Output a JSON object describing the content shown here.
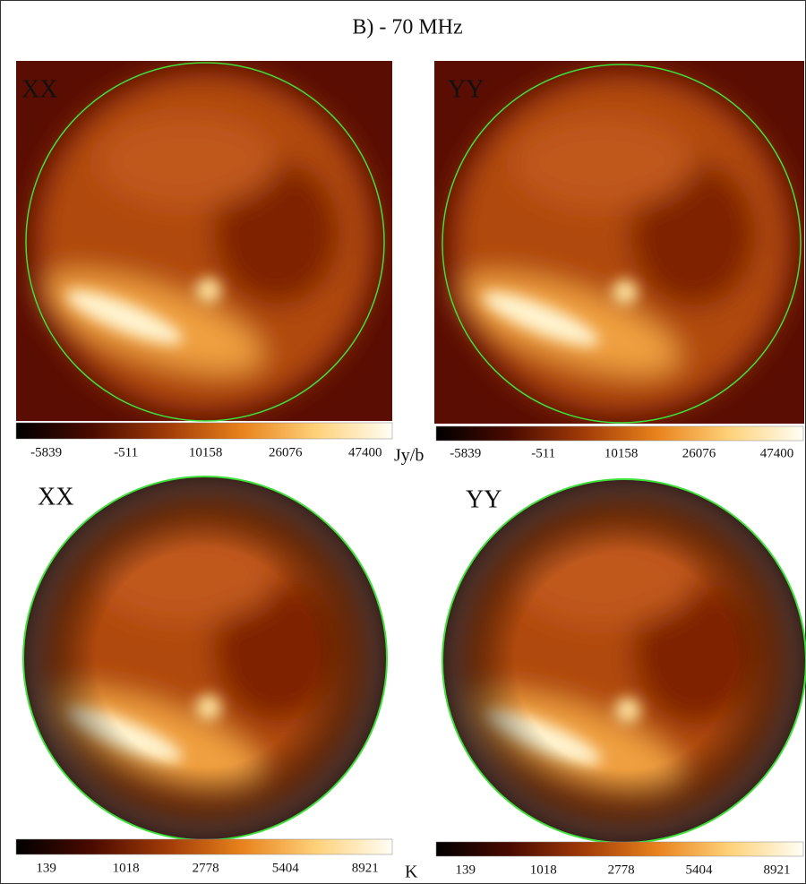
{
  "title": "B) - 70 MHz",
  "panels": [
    {
      "label": "XX"
    },
    {
      "label": "YY"
    },
    {
      "label": "XX"
    },
    {
      "label": "YY"
    }
  ],
  "colorbars": [
    {
      "ticks": [
        "-5839",
        "-511",
        "10158",
        "26076",
        "47400"
      ]
    },
    {
      "ticks": [
        "-5839",
        "-511",
        "10158",
        "26076",
        "47400"
      ]
    },
    {
      "ticks": [
        "139",
        "1018",
        "2778",
        "5404",
        "8921"
      ]
    },
    {
      "ticks": [
        "139",
        "1018",
        "2778",
        "5404",
        "8921"
      ]
    }
  ],
  "units": [
    "Jy/b",
    "K"
  ]
}
